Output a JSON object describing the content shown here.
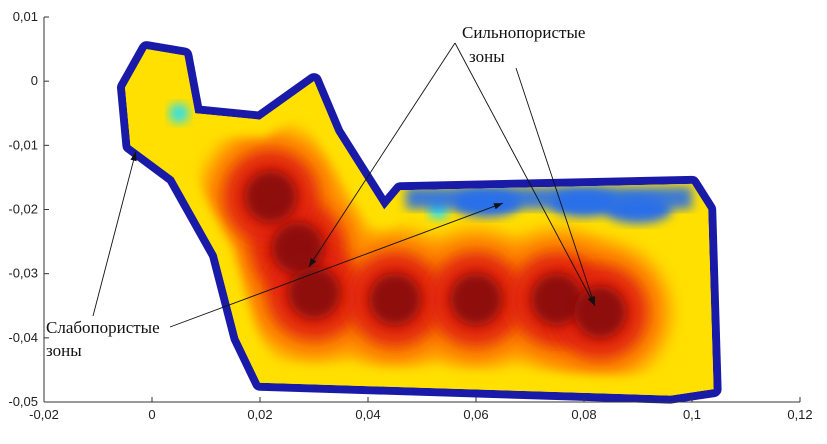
{
  "chart_data": {
    "type": "heatmap",
    "title": "",
    "xlabel": "",
    "ylabel": "",
    "xlim": [
      -0.02,
      0.12
    ],
    "ylim": [
      -0.05,
      0.01
    ],
    "x_ticks": [
      "-0,02",
      "0",
      "0,02",
      "0,04",
      "0,06",
      "0,08",
      "0,1",
      "0,12"
    ],
    "y_ticks": [
      "0,01",
      "0",
      "-0,01",
      "-0,02",
      "-0,03",
      "-0,04",
      "-0,05"
    ],
    "x_tick_values": [
      -0.02,
      0,
      0.02,
      0.04,
      0.06,
      0.08,
      0.1,
      0.12
    ],
    "y_tick_values": [
      0.01,
      0,
      -0.01,
      -0.02,
      -0.03,
      -0.04,
      -0.05
    ],
    "grid": false,
    "colormap": "jet",
    "colors": {
      "outline": "#1a1aa8",
      "low": "#2b6fe8",
      "cyan": "#33e0e8",
      "yellow": "#ffe000",
      "orange": "#ff8a00",
      "red": "#e02010",
      "dark_red": "#8a0a0a"
    },
    "annotations": [
      {
        "text_lines": [
          "Сильнопористые",
          "зоны"
        ],
        "targets": [
          [
            0.029,
            -0.029
          ],
          [
            0.082,
            -0.035
          ]
        ]
      },
      {
        "text_lines": [
          "Слабопористые",
          "зоны"
        ],
        "targets": [
          [
            -0.003,
            -0.011
          ],
          [
            0.065,
            -0.019
          ]
        ]
      }
    ],
    "region_outline": [
      [
        -0.001,
        0.005
      ],
      [
        0.006,
        0.004
      ],
      [
        0.008,
        -0.005
      ],
      [
        0.02,
        -0.006
      ],
      [
        0.03,
        0.0
      ],
      [
        0.034,
        -0.008
      ],
      [
        0.04,
        -0.016
      ],
      [
        0.043,
        -0.02
      ],
      [
        0.046,
        -0.017
      ],
      [
        0.1,
        -0.016
      ],
      [
        0.103,
        -0.02
      ],
      [
        0.104,
        -0.048
      ],
      [
        0.096,
        -0.049
      ],
      [
        0.02,
        -0.047
      ],
      [
        0.016,
        -0.04
      ],
      [
        0.012,
        -0.027
      ],
      [
        0.004,
        -0.015
      ],
      [
        -0.004,
        -0.01
      ],
      [
        -0.005,
        -0.001
      ]
    ],
    "hot_cores": [
      {
        "x": 0.027,
        "y": -0.026,
        "level": "dark_red"
      },
      {
        "x": 0.03,
        "y": -0.033,
        "level": "dark_red"
      },
      {
        "x": 0.022,
        "y": -0.018,
        "level": "dark_red"
      },
      {
        "x": 0.045,
        "y": -0.034,
        "level": "dark_red"
      },
      {
        "x": 0.06,
        "y": -0.034,
        "level": "dark_red"
      },
      {
        "x": 0.075,
        "y": -0.034,
        "level": "dark_red"
      },
      {
        "x": 0.083,
        "y": -0.036,
        "level": "dark_red"
      }
    ],
    "low_zones": [
      {
        "x": 0.005,
        "y": -0.005,
        "level": "cyan"
      },
      {
        "x": 0.053,
        "y": -0.02,
        "level": "cyan"
      },
      {
        "x": 0.062,
        "y": -0.019,
        "level": "low"
      },
      {
        "x": 0.08,
        "y": -0.019,
        "level": "low"
      },
      {
        "x": 0.09,
        "y": -0.02,
        "level": "low"
      }
    ]
  }
}
